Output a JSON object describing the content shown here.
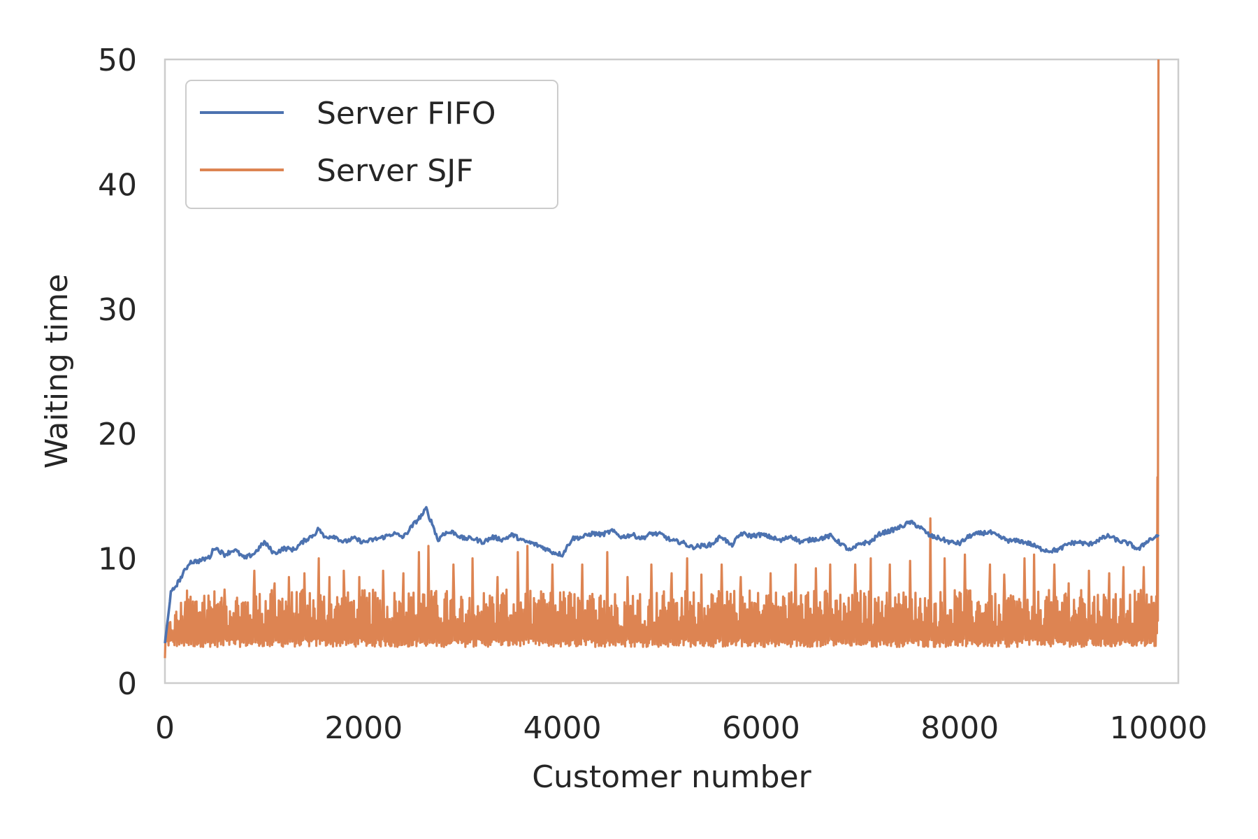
{
  "chart_data": {
    "type": "line",
    "title": "",
    "xlabel": "Customer number",
    "ylabel": "Waiting time",
    "xlim": [
      0,
      10200
    ],
    "ylim": [
      0,
      50
    ],
    "xticks": [
      0,
      2000,
      4000,
      6000,
      8000,
      10000
    ],
    "yticks": [
      0,
      10,
      20,
      30,
      40,
      50
    ],
    "xtick_labels": [
      "0",
      "2000",
      "4000",
      "6000",
      "8000",
      "10000"
    ],
    "ytick_labels": [
      "0",
      "10",
      "20",
      "30",
      "40",
      "50"
    ],
    "grid": false,
    "legend_position": "upper-left",
    "series": [
      {
        "name": "Server FIFO",
        "color": "#4c72b0",
        "x": [
          0,
          60,
          150,
          250,
          350,
          450,
          500,
          600,
          700,
          800,
          900,
          1000,
          1100,
          1200,
          1300,
          1400,
          1500,
          1550,
          1600,
          1700,
          1800,
          1900,
          2000,
          2100,
          2200,
          2300,
          2400,
          2500,
          2600,
          2630,
          2650,
          2700,
          2750,
          2800,
          2900,
          3000,
          3100,
          3200,
          3300,
          3400,
          3500,
          3600,
          3700,
          3800,
          3900,
          4000,
          4100,
          4200,
          4300,
          4400,
          4500,
          4600,
          4700,
          4800,
          4900,
          5000,
          5100,
          5200,
          5300,
          5400,
          5500,
          5600,
          5700,
          5800,
          5900,
          6000,
          6100,
          6200,
          6300,
          6400,
          6500,
          6600,
          6700,
          6800,
          6900,
          7000,
          7100,
          7200,
          7300,
          7400,
          7500,
          7600,
          7700,
          7800,
          7900,
          8000,
          8100,
          8200,
          8300,
          8400,
          8500,
          8600,
          8700,
          8800,
          8900,
          9000,
          9100,
          9200,
          9300,
          9400,
          9500,
          9600,
          9700,
          9800,
          9900,
          9950,
          10000
        ],
        "y": [
          3.2,
          7.2,
          8.3,
          9.7,
          9.8,
          10.1,
          10.9,
          10.3,
          10.7,
          10.0,
          10.4,
          11.3,
          10.4,
          10.8,
          10.7,
          11.4,
          11.9,
          12.4,
          11.7,
          11.8,
          11.3,
          11.6,
          11.3,
          11.5,
          11.7,
          12.0,
          11.7,
          12.7,
          13.6,
          14.0,
          13.5,
          12.6,
          11.4,
          12.0,
          12.1,
          11.6,
          11.6,
          11.3,
          11.7,
          11.5,
          11.9,
          11.4,
          11.2,
          10.9,
          10.5,
          10.3,
          11.6,
          11.7,
          12.0,
          11.9,
          12.2,
          11.7,
          11.9,
          11.6,
          12.0,
          11.9,
          11.4,
          11.3,
          10.9,
          11.0,
          11.1,
          11.8,
          11.0,
          12.0,
          11.8,
          11.9,
          11.7,
          11.4,
          11.8,
          11.3,
          11.5,
          11.6,
          11.8,
          11.2,
          10.6,
          11.2,
          11.3,
          12.0,
          12.2,
          12.5,
          12.9,
          12.5,
          11.8,
          11.6,
          11.3,
          11.2,
          11.8,
          12.0,
          12.1,
          11.7,
          11.4,
          11.4,
          11.2,
          10.8,
          10.6,
          10.7,
          11.2,
          11.3,
          11.1,
          11.5,
          11.8,
          11.4,
          11.2,
          10.7,
          11.5,
          11.6,
          11.9
        ]
      },
      {
        "name": "Server SJF",
        "color": "#dd8452",
        "x_range": [
          0,
          10000
        ],
        "baseline": 3.5,
        "band_high": 7.5,
        "spike_x": [
          200,
          400,
          600,
          900,
          1100,
          1250,
          1400,
          1550,
          1650,
          1800,
          1950,
          2200,
          2400,
          2550,
          2650,
          2900,
          3100,
          3350,
          3550,
          3650,
          3900,
          4200,
          4450,
          4650,
          4900,
          5100,
          5250,
          5400,
          5600,
          5800,
          6100,
          6350,
          6550,
          6700,
          6950,
          7100,
          7300,
          7500,
          7700,
          7850,
          8050,
          8300,
          8450,
          8650,
          8750,
          8950,
          9100,
          9300,
          9500,
          9650,
          9850,
          9990,
          10000
        ],
        "spike_y": [
          6.5,
          7.0,
          7.5,
          9.0,
          8.0,
          8.5,
          8.8,
          10.0,
          8.5,
          9.0,
          8.5,
          9.0,
          8.8,
          10.5,
          11.0,
          9.5,
          10.0,
          8.5,
          10.5,
          11.0,
          9.5,
          9.5,
          10.5,
          8.5,
          9.5,
          8.8,
          10.0,
          8.7,
          9.5,
          8.5,
          8.8,
          9.5,
          9.2,
          9.5,
          9.5,
          10.0,
          9.5,
          9.8,
          13.2,
          10.0,
          10.3,
          9.5,
          8.7,
          10.0,
          10.3,
          9.5,
          8.0,
          9.0,
          8.8,
          9.3,
          9.3,
          16.5,
          50.0
        ]
      }
    ]
  }
}
